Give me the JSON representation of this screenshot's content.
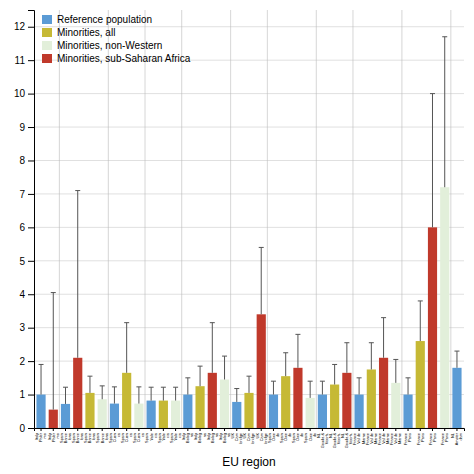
{
  "chart_data": {
    "type": "bar",
    "xlabel": "EU region",
    "categories": [
      "Italy\nPaler\nmo",
      "Italy\nPaler\nmo",
      "Spain\nBarce\nlona",
      "Spain\nBarce\nlona",
      "Spain\nBarce\nlona",
      "Spain\nBarce\nlona",
      "Spain\nCuen\nca",
      "Spain\nCuen\nca",
      "Spain\nCuen\nca",
      "Spain\nVale\ncia",
      "Spain\nVale\ncia",
      "Spain\nVale\ncia",
      "Italy\nBolog\nna",
      "Italy\nBolog\nna",
      "Italy\nBolog\nna",
      "Italy\nBolog\nna",
      "UK\nCam\nbridge",
      "UK\nCam\nbridge",
      "UK\nCam\nbridge",
      "Spain\nOvie\ndo",
      "Spain\nOvie\ndo",
      "Spain\nOvie\ndo",
      "Spain\nOvie\ndo",
      "NL\nGouda &\nVoorh.",
      "NL\nGouda &\nVoorh.",
      "NL\nGouda &\nVoorh.",
      "France\nVal de\nMarne",
      "France\nVal de\nMarne",
      "France\nVal de\nMarne",
      "France\nVal de\nMarne",
      "France\nParis",
      "France\nParis",
      "France\nParis",
      "France\nParis",
      "NL\nAmster\ndam"
    ],
    "series": [
      {
        "name": "Reference population",
        "color": "#5b9bd5",
        "values": [
          1.0,
          null,
          0.72,
          null,
          null,
          null,
          0.73,
          null,
          null,
          0.82,
          null,
          null,
          1.0,
          null,
          null,
          null,
          0.78,
          null,
          null,
          1.0,
          null,
          null,
          null,
          1.0,
          null,
          null,
          1.0,
          null,
          null,
          null,
          1.0,
          null,
          null,
          null,
          1.8
        ],
        "error_hi": [
          0.9,
          null,
          0.5,
          null,
          null,
          null,
          0.5,
          null,
          null,
          0.4,
          null,
          null,
          0.5,
          null,
          null,
          null,
          0.4,
          null,
          null,
          0.4,
          null,
          null,
          null,
          0.4,
          null,
          null,
          0.5,
          null,
          null,
          null,
          0.5,
          null,
          null,
          null,
          0.5
        ]
      },
      {
        "name": "Minorities, all",
        "color": "#c6b935",
        "values": [
          null,
          null,
          null,
          null,
          1.05,
          null,
          null,
          1.65,
          null,
          null,
          0.82,
          null,
          null,
          1.25,
          null,
          null,
          null,
          1.05,
          null,
          null,
          1.55,
          null,
          null,
          null,
          1.3,
          null,
          null,
          1.75,
          null,
          null,
          null,
          2.6,
          null,
          null,
          null
        ],
        "error_hi": [
          null,
          null,
          null,
          null,
          0.5,
          null,
          null,
          1.5,
          null,
          null,
          0.4,
          null,
          null,
          0.6,
          null,
          null,
          null,
          0.5,
          null,
          null,
          0.7,
          null,
          null,
          null,
          0.6,
          null,
          null,
          0.8,
          null,
          null,
          null,
          1.2,
          null,
          null,
          null
        ]
      },
      {
        "name": "Minorities, non-Western",
        "color": "#e2efda",
        "values": [
          null,
          null,
          null,
          null,
          null,
          0.86,
          null,
          null,
          0.73,
          null,
          null,
          0.82,
          null,
          null,
          null,
          1.45,
          null,
          null,
          null,
          null,
          null,
          null,
          0.9,
          null,
          null,
          null,
          null,
          null,
          null,
          1.35,
          null,
          null,
          null,
          7.2,
          null
        ],
        "error_hi": [
          null,
          null,
          null,
          null,
          null,
          0.4,
          null,
          null,
          0.5,
          null,
          null,
          0.4,
          null,
          null,
          null,
          0.7,
          null,
          null,
          null,
          null,
          null,
          null,
          0.5,
          null,
          null,
          null,
          null,
          null,
          null,
          0.7,
          null,
          null,
          null,
          4.5,
          null
        ]
      },
      {
        "name": "Minorities, sub-Saharan Africa",
        "color": "#c0392b",
        "values": [
          null,
          0.55,
          null,
          2.1,
          null,
          null,
          null,
          null,
          null,
          null,
          null,
          null,
          null,
          null,
          1.65,
          null,
          null,
          null,
          3.4,
          null,
          null,
          1.8,
          null,
          null,
          null,
          1.65,
          null,
          null,
          2.1,
          null,
          null,
          null,
          6.0,
          null,
          null
        ],
        "error_hi": [
          null,
          3.5,
          null,
          5.0,
          null,
          null,
          null,
          null,
          null,
          null,
          null,
          null,
          null,
          null,
          1.5,
          null,
          null,
          null,
          2.0,
          null,
          null,
          1.0,
          null,
          null,
          null,
          0.9,
          null,
          null,
          1.2,
          null,
          null,
          null,
          4.0,
          null,
          null
        ]
      }
    ],
    "ylim": [
      0,
      12.5
    ],
    "yticks": [
      0,
      1,
      2,
      3,
      4,
      5,
      6,
      7,
      8,
      9,
      10,
      11,
      12
    ],
    "grid": true,
    "legend": "upper-left"
  }
}
